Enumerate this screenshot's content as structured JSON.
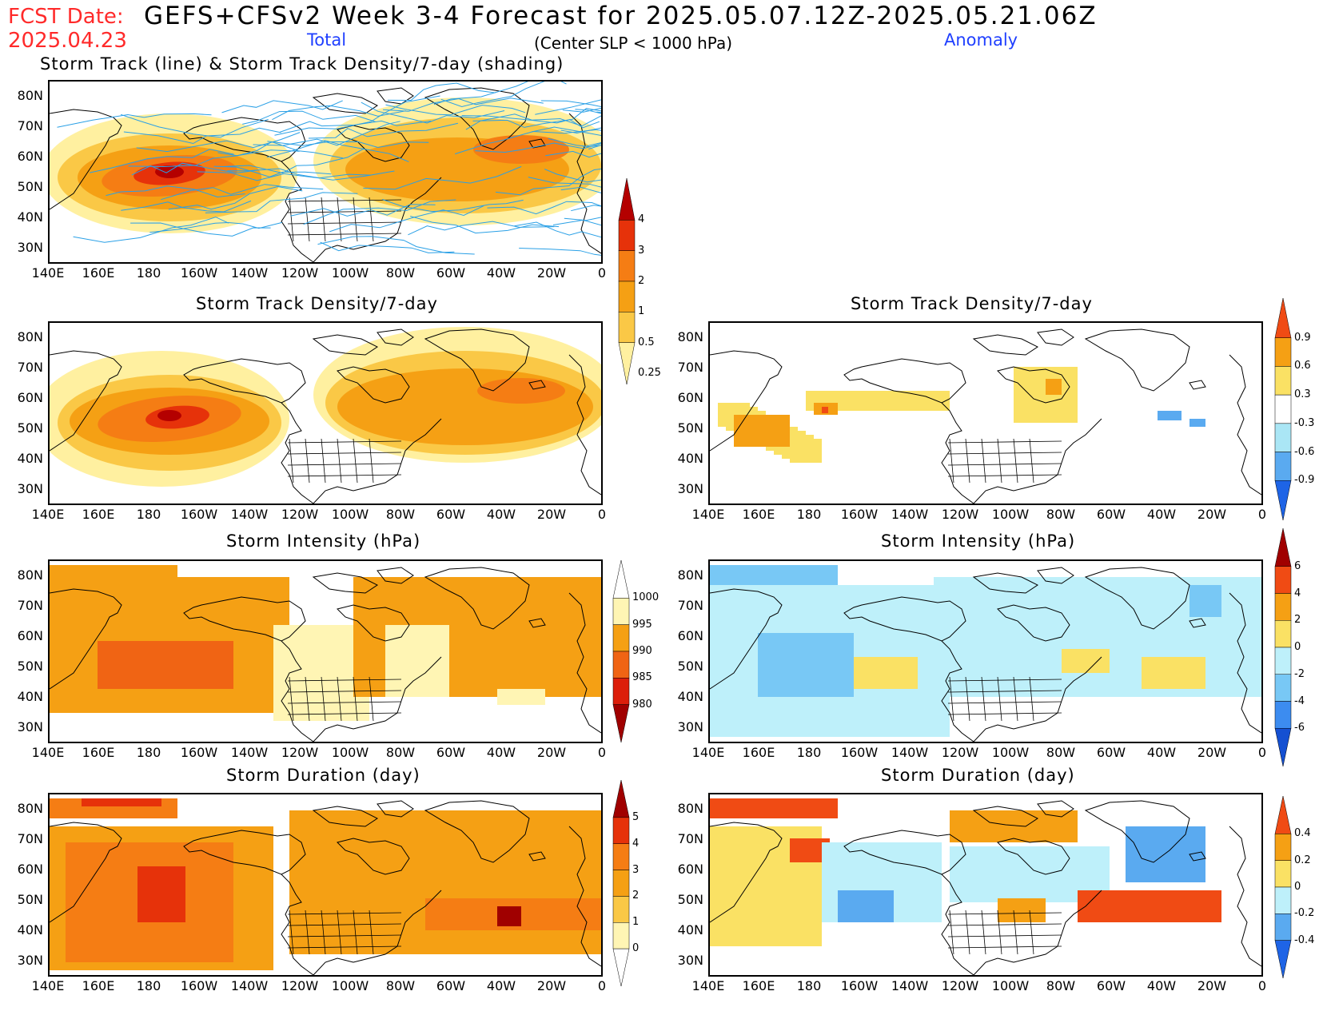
{
  "header": {
    "fcst_label": "FCST Date:",
    "fcst_date": "2025.04.23",
    "title": "GEFS+CFSv2 Week 3-4 Forecast for 2025.05.07.12Z-2025.05.21.06Z",
    "total_label": "Total",
    "center_note": "(Center SLP < 1000 hPa)",
    "anomaly_label": "Anomaly"
  },
  "panels": {
    "track": {
      "title": "Storm Track (line) & Storm Track Density/7-day (shading)"
    },
    "density_total": {
      "title": "Storm Track Density/7-day"
    },
    "density_anom": {
      "title": "Storm Track Density/7-day"
    },
    "intensity_total": {
      "title": "Storm Intensity (hPa)"
    },
    "intensity_anom": {
      "title": "Storm Intensity (hPa)"
    },
    "duration_total": {
      "title": "Storm Duration (day)"
    },
    "duration_anom": {
      "title": "Storm Duration (day)"
    }
  },
  "axes": {
    "lat_ticks": [
      "80N",
      "70N",
      "60N",
      "50N",
      "40N",
      "30N"
    ],
    "lon_ticks": [
      "140E",
      "160E",
      "180",
      "160W",
      "140W",
      "120W",
      "100W",
      "80W",
      "60W",
      "40W",
      "20W",
      "0"
    ]
  },
  "colorbars": {
    "density_total": {
      "labels": [
        "4",
        "3",
        "2",
        "1",
        "0.5",
        "0.25"
      ],
      "colors": [
        "#b40000",
        "#e6320a",
        "#f57d14",
        "#f5a014",
        "#fac846",
        "#fff0a0"
      ]
    },
    "density_anom": {
      "labels": [
        "0.9",
        "0.6",
        "0.3",
        "-0.3",
        "-0.6",
        "-0.9"
      ],
      "colors": [
        "#f04b14",
        "#f5a014",
        "#fae164",
        "#ffffff",
        "#aae6f5",
        "#5aaaf0",
        "#1e64e6"
      ]
    },
    "intensity_total": {
      "labels": [
        "1000",
        "995",
        "990",
        "985",
        "980"
      ],
      "colors": [
        "#ffffff",
        "#fff5b4",
        "#f5a014",
        "#f06414",
        "#dc1e0a",
        "#a00000"
      ]
    },
    "intensity_anom": {
      "labels": [
        "6",
        "4",
        "2",
        "0",
        "-2",
        "-4",
        "-6"
      ],
      "colors": [
        "#a00000",
        "#f04b14",
        "#f5a014",
        "#fae164",
        "#bef0fa",
        "#78c8f5",
        "#3c8cf0",
        "#1450d2"
      ]
    },
    "duration_total": {
      "labels": [
        "5",
        "4",
        "3",
        "2",
        "1",
        "0"
      ],
      "colors": [
        "#a00000",
        "#e6320a",
        "#f57d14",
        "#f5a014",
        "#fac846",
        "#fff5b4",
        "#ffffff"
      ]
    },
    "duration_anom": {
      "labels": [
        "0.4",
        "0.2",
        "0",
        "-0.2",
        "-0.4"
      ],
      "colors": [
        "#f04b14",
        "#f5a014",
        "#fae164",
        "#bef0fa",
        "#5aaaf0",
        "#1e64e6"
      ]
    }
  }
}
